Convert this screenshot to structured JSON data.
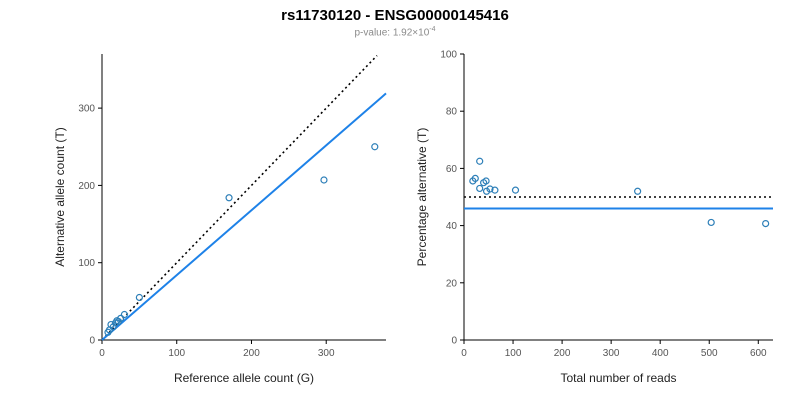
{
  "header": {
    "title": "rs11730120 - ENSG00000145416",
    "pvalue_prefix": "p-value: 1.92×10",
    "pvalue_exponent": "-4"
  },
  "chart_data": [
    {
      "type": "scatter",
      "xlabel": "Reference allele count (G)",
      "ylabel": "Alternative allele count (T)",
      "xlim": [
        0,
        380
      ],
      "ylim": [
        0,
        370
      ],
      "xticks": [
        0,
        100,
        200,
        300
      ],
      "yticks": [
        0,
        100,
        200,
        300
      ],
      "point_color": "#2d7fb8",
      "points": [
        [
          8,
          10
        ],
        [
          10,
          13
        ],
        [
          12,
          20
        ],
        [
          15,
          17
        ],
        [
          18,
          22
        ],
        [
          20,
          25
        ],
        [
          22,
          24
        ],
        [
          25,
          28
        ],
        [
          30,
          33
        ],
        [
          50,
          55
        ],
        [
          170,
          184
        ],
        [
          297,
          207
        ],
        [
          365,
          250
        ]
      ],
      "lines": [
        {
          "name": "identity",
          "style": "dotted",
          "color": "#000000",
          "width": 1.6,
          "x1": 0,
          "y1": 0,
          "x2": 368,
          "y2": 368
        },
        {
          "name": "regression",
          "style": "solid",
          "color": "#1e82e8",
          "width": 2,
          "x1": 0,
          "y1": 0,
          "x2": 380,
          "y2": 319
        }
      ]
    },
    {
      "type": "scatter",
      "xlabel": "Total number of reads",
      "ylabel": "Percentage alternative (T)",
      "xlim": [
        0,
        630
      ],
      "ylim": [
        0,
        100
      ],
      "xticks": [
        0,
        100,
        200,
        300,
        400,
        500,
        600
      ],
      "yticks": [
        0,
        20,
        40,
        60,
        80,
        100
      ],
      "point_color": "#2d7fb8",
      "points": [
        [
          18,
          55.6
        ],
        [
          23,
          56.5
        ],
        [
          32,
          62.5
        ],
        [
          32,
          53
        ],
        [
          40,
          55
        ],
        [
          45,
          55.6
        ],
        [
          46,
          52
        ],
        [
          53,
          52.8
        ],
        [
          63,
          52.4
        ],
        [
          105,
          52.4
        ],
        [
          354,
          52
        ],
        [
          504,
          41.1
        ],
        [
          615,
          40.7
        ]
      ],
      "lines": [
        {
          "name": "expected",
          "style": "dotted",
          "color": "#000000",
          "width": 1.6,
          "x1": 0,
          "y1": 50,
          "x2": 630,
          "y2": 50
        },
        {
          "name": "observed",
          "style": "solid",
          "color": "#1e82e8",
          "width": 2,
          "x1": 0,
          "y1": 46,
          "x2": 630,
          "y2": 46
        }
      ]
    }
  ]
}
